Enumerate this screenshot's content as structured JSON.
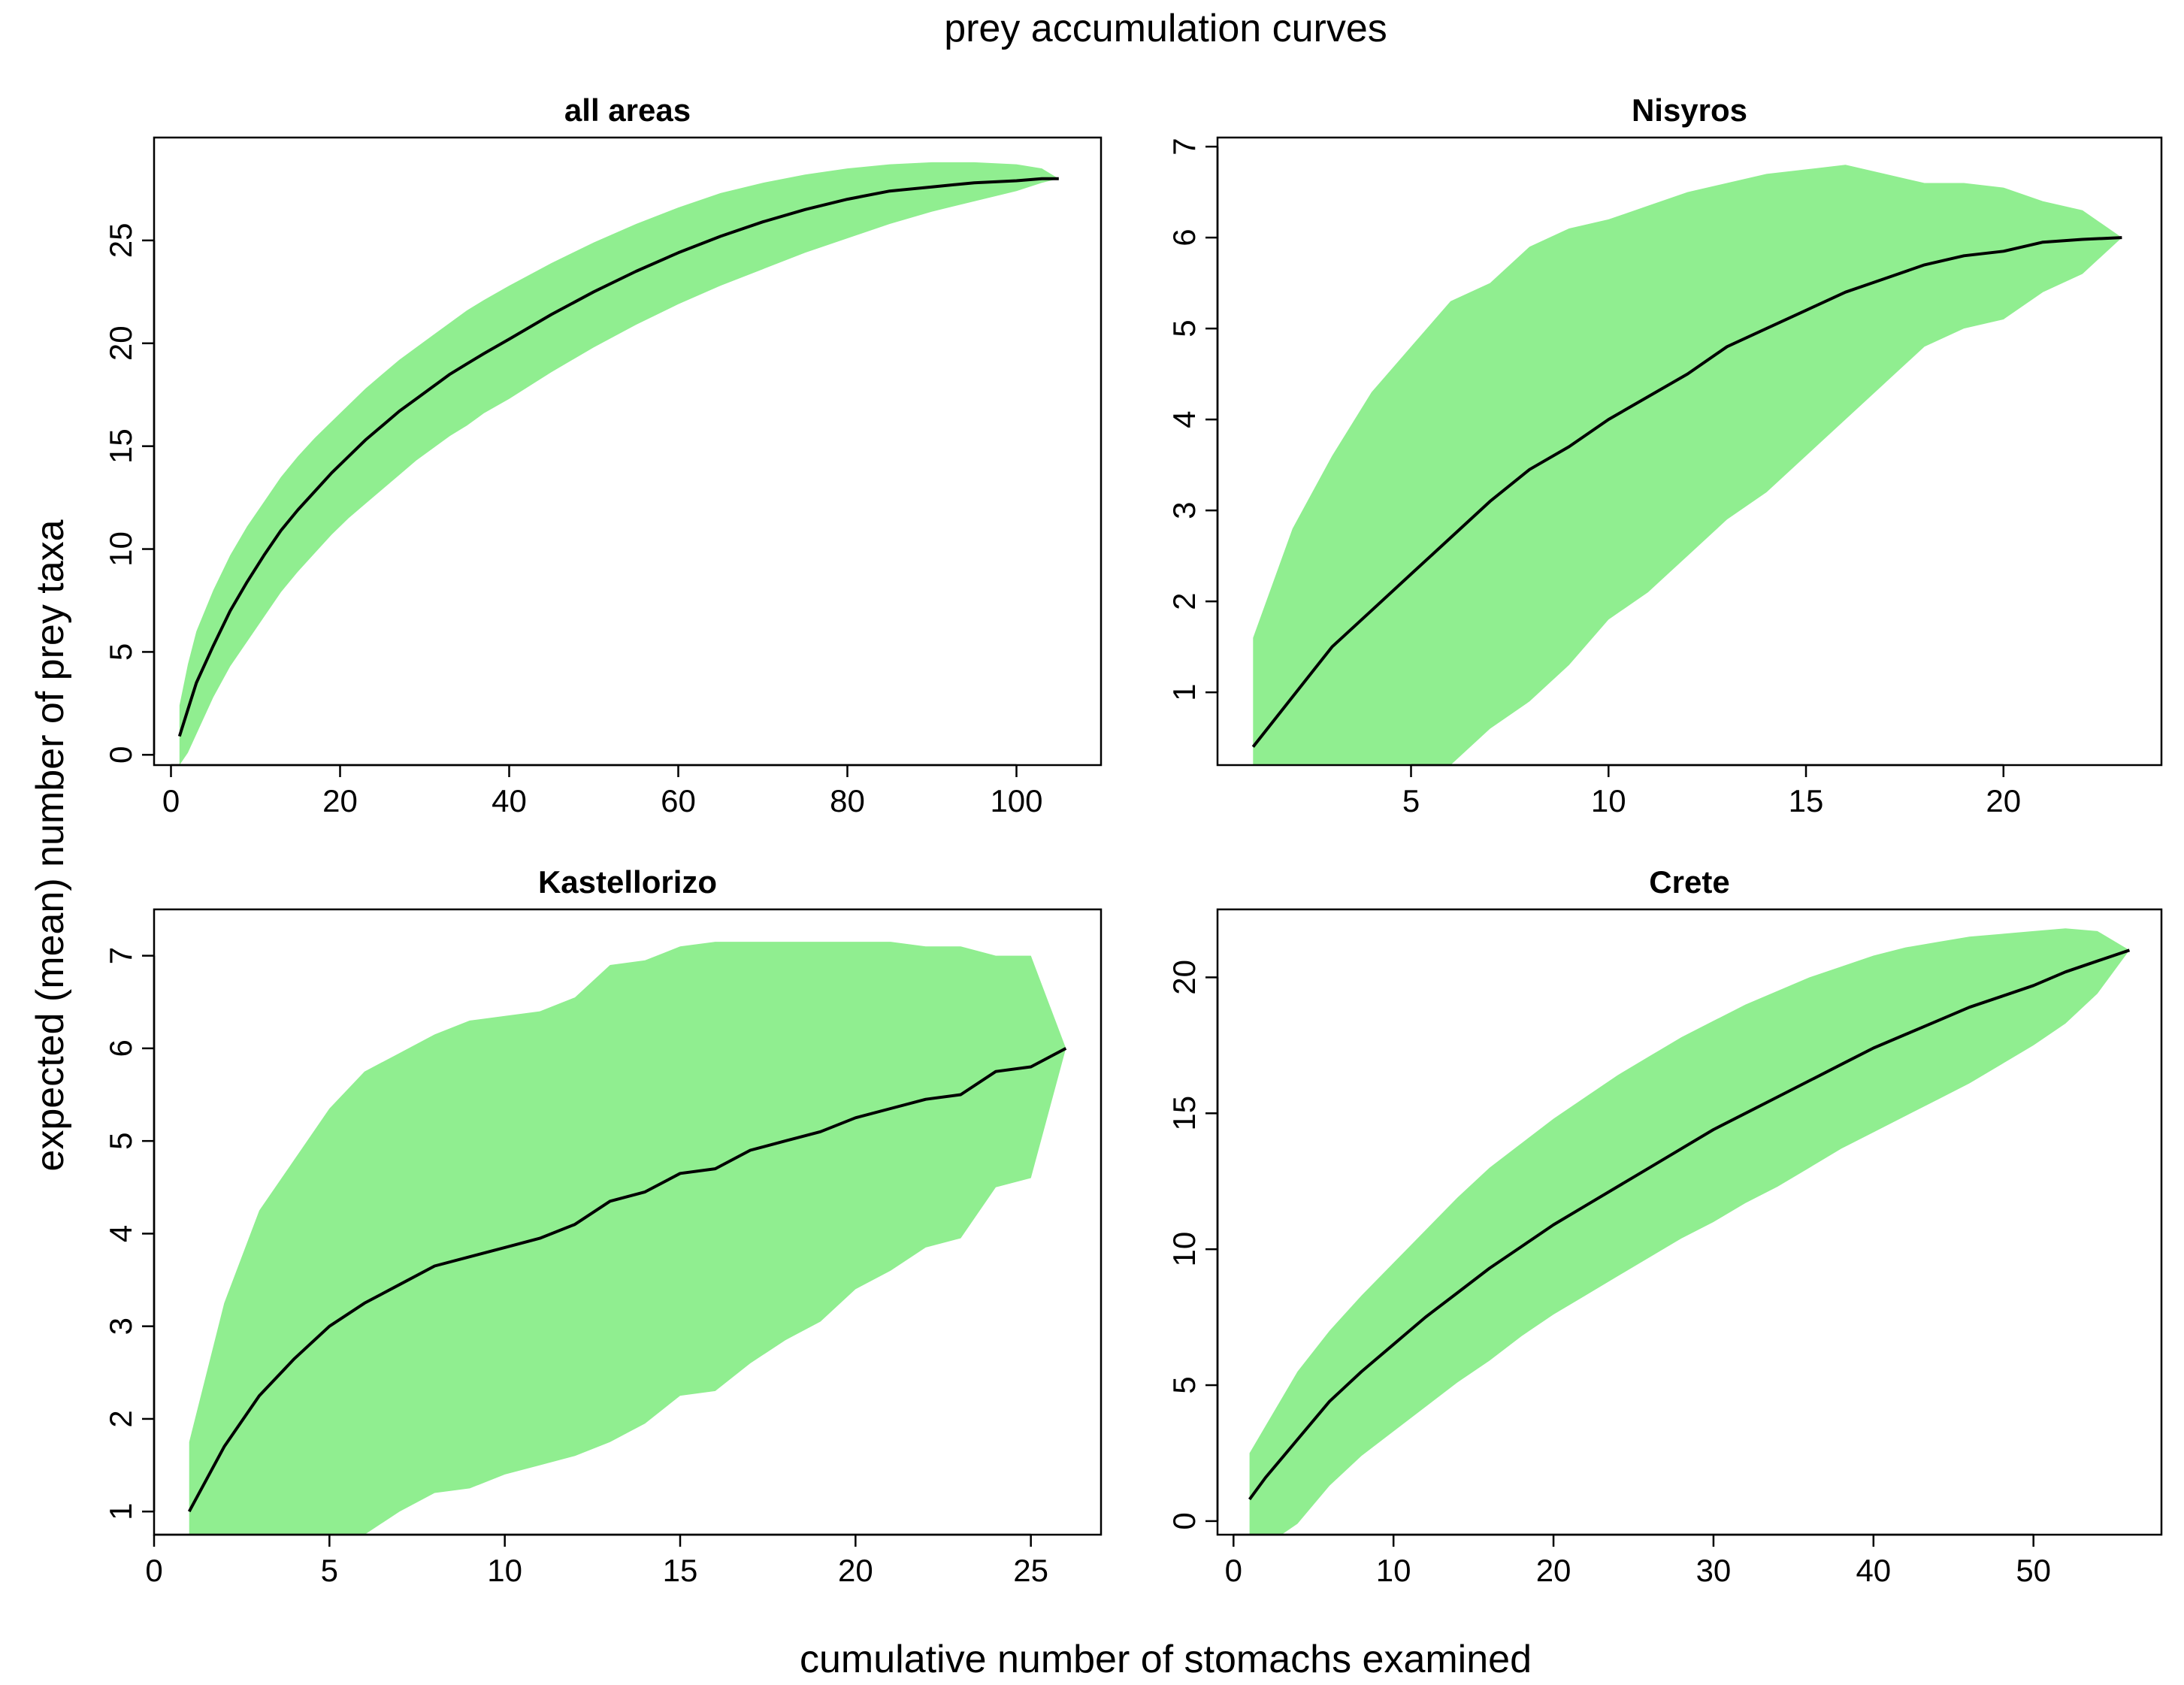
{
  "title": "prey accumulation curves",
  "xlabel": "cumulative number of stomachs examined",
  "ylabel": "expected (mean) number of prey taxa",
  "colors": {
    "band": "#90ee90",
    "line": "#000000",
    "frame": "#000000"
  },
  "chart_data": [
    {
      "type": "area",
      "title": "all areas",
      "xlim": [
        -2,
        110
      ],
      "ylim": [
        -0.5,
        30
      ],
      "xticks": [
        0,
        20,
        40,
        60,
        80,
        100
      ],
      "yticks": [
        0,
        5,
        10,
        15,
        20,
        25
      ],
      "x": [
        1,
        2,
        3,
        5,
        7,
        9,
        11,
        13,
        15,
        17,
        19,
        21,
        23,
        25,
        27,
        29,
        31,
        33,
        35,
        37,
        40,
        45,
        50,
        55,
        60,
        65,
        70,
        75,
        80,
        85,
        90,
        95,
        100,
        103,
        105
      ],
      "mean": [
        0.9,
        2.2,
        3.5,
        5.3,
        7.0,
        8.4,
        9.7,
        10.9,
        11.9,
        12.8,
        13.7,
        14.5,
        15.3,
        16.0,
        16.7,
        17.3,
        17.9,
        18.5,
        19.0,
        19.5,
        20.2,
        21.4,
        22.5,
        23.5,
        24.4,
        25.2,
        25.9,
        26.5,
        27.0,
        27.4,
        27.6,
        27.8,
        27.9,
        28.0,
        28.0
      ],
      "lower": [
        -0.5,
        0.1,
        1.0,
        2.8,
        4.3,
        5.5,
        6.7,
        7.9,
        8.9,
        9.8,
        10.7,
        11.5,
        12.2,
        12.9,
        13.6,
        14.3,
        14.9,
        15.5,
        16.0,
        16.6,
        17.3,
        18.6,
        19.8,
        20.9,
        21.9,
        22.8,
        23.6,
        24.4,
        25.1,
        25.8,
        26.4,
        26.9,
        27.4,
        27.8,
        28.0
      ],
      "upper": [
        2.4,
        4.4,
        6.0,
        8.0,
        9.7,
        11.1,
        12.3,
        13.5,
        14.5,
        15.4,
        16.2,
        17.0,
        17.8,
        18.5,
        19.2,
        19.8,
        20.4,
        21.0,
        21.6,
        22.1,
        22.8,
        23.9,
        24.9,
        25.8,
        26.6,
        27.3,
        27.8,
        28.2,
        28.5,
        28.7,
        28.8,
        28.8,
        28.7,
        28.5,
        28.0
      ]
    },
    {
      "type": "area",
      "title": "Nisyros",
      "xlim": [
        0.1,
        24
      ],
      "ylim": [
        0.2,
        7.1
      ],
      "xticks": [
        5,
        10,
        15,
        20
      ],
      "yticks": [
        1,
        2,
        3,
        4,
        5,
        6,
        7
      ],
      "x": [
        1,
        2,
        3,
        4,
        5,
        6,
        7,
        8,
        9,
        10,
        11,
        12,
        13,
        14,
        15,
        16,
        17,
        18,
        19,
        20,
        21,
        22,
        23
      ],
      "mean": [
        0.4,
        0.95,
        1.5,
        1.9,
        2.3,
        2.7,
        3.1,
        3.45,
        3.7,
        4.0,
        4.25,
        4.5,
        4.8,
        5.0,
        5.2,
        5.4,
        5.55,
        5.7,
        5.8,
        5.85,
        5.95,
        5.98,
        6.0
      ],
      "lower": [
        0.2,
        0.2,
        0.2,
        0.2,
        0.2,
        0.2,
        0.6,
        0.9,
        1.3,
        1.8,
        2.1,
        2.5,
        2.9,
        3.2,
        3.6,
        4.0,
        4.4,
        4.8,
        5.0,
        5.1,
        5.4,
        5.6,
        6.0
      ],
      "upper": [
        1.6,
        2.8,
        3.6,
        4.3,
        4.8,
        5.3,
        5.5,
        5.9,
        6.1,
        6.2,
        6.35,
        6.5,
        6.6,
        6.7,
        6.75,
        6.8,
        6.7,
        6.6,
        6.6,
        6.55,
        6.4,
        6.3,
        6.0
      ]
    },
    {
      "type": "area",
      "title": "Kastellorizo",
      "xlim": [
        0,
        27
      ],
      "ylim": [
        0.75,
        7.5
      ],
      "xticks": [
        0,
        5,
        10,
        15,
        20,
        25
      ],
      "yticks": [
        1,
        2,
        3,
        4,
        5,
        6,
        7
      ],
      "x": [
        1,
        2,
        3,
        4,
        5,
        6,
        7,
        8,
        9,
        10,
        11,
        12,
        13,
        14,
        15,
        16,
        17,
        18,
        19,
        20,
        21,
        22,
        23,
        24,
        25,
        26
      ],
      "mean": [
        1.0,
        1.7,
        2.25,
        2.65,
        3.0,
        3.25,
        3.45,
        3.65,
        3.75,
        3.85,
        3.95,
        4.1,
        4.35,
        4.45,
        4.65,
        4.7,
        4.9,
        5.0,
        5.1,
        5.25,
        5.35,
        5.45,
        5.5,
        5.75,
        5.8,
        6.0
      ],
      "lower": [
        0.75,
        0.75,
        0.75,
        0.75,
        0.75,
        0.75,
        1.0,
        1.2,
        1.25,
        1.4,
        1.5,
        1.6,
        1.75,
        1.95,
        2.25,
        2.3,
        2.6,
        2.85,
        3.05,
        3.4,
        3.6,
        3.85,
        3.95,
        4.5,
        4.6,
        6.0
      ],
      "upper": [
        1.75,
        3.25,
        4.25,
        4.8,
        5.35,
        5.75,
        5.95,
        6.15,
        6.3,
        6.35,
        6.4,
        6.55,
        6.9,
        6.95,
        7.1,
        7.15,
        7.15,
        7.15,
        7.15,
        7.15,
        7.15,
        7.1,
        7.1,
        7.0,
        7.0,
        6.0
      ]
    },
    {
      "type": "area",
      "title": "Crete",
      "xlim": [
        -1,
        58
      ],
      "ylim": [
        -0.5,
        22.5
      ],
      "xticks": [
        0,
        10,
        20,
        30,
        40,
        50
      ],
      "yticks": [
        0,
        5,
        10,
        15,
        20
      ],
      "x": [
        1,
        2,
        3,
        4,
        6,
        8,
        10,
        12,
        14,
        16,
        18,
        20,
        22,
        24,
        26,
        28,
        30,
        32,
        34,
        36,
        38,
        40,
        42,
        44,
        46,
        48,
        50,
        52,
        54,
        56
      ],
      "mean": [
        0.8,
        1.6,
        2.3,
        3.0,
        4.4,
        5.5,
        6.5,
        7.5,
        8.4,
        9.3,
        10.1,
        10.9,
        11.6,
        12.3,
        13.0,
        13.7,
        14.4,
        15.0,
        15.6,
        16.2,
        16.8,
        17.4,
        17.9,
        18.4,
        18.9,
        19.3,
        19.7,
        20.2,
        20.6,
        21.0
      ],
      "lower": [
        -0.5,
        -0.5,
        -0.5,
        -0.1,
        1.3,
        2.4,
        3.3,
        4.2,
        5.1,
        5.9,
        6.8,
        7.6,
        8.3,
        9.0,
        9.7,
        10.4,
        11.0,
        11.7,
        12.3,
        13.0,
        13.7,
        14.3,
        14.9,
        15.5,
        16.1,
        16.8,
        17.5,
        18.3,
        19.4,
        21.0
      ],
      "upper": [
        2.5,
        3.5,
        4.5,
        5.5,
        7.0,
        8.3,
        9.5,
        10.7,
        11.9,
        13.0,
        13.9,
        14.8,
        15.6,
        16.4,
        17.1,
        17.8,
        18.4,
        19.0,
        19.5,
        20.0,
        20.4,
        20.8,
        21.1,
        21.3,
        21.5,
        21.6,
        21.7,
        21.8,
        21.7,
        21.0
      ]
    }
  ]
}
